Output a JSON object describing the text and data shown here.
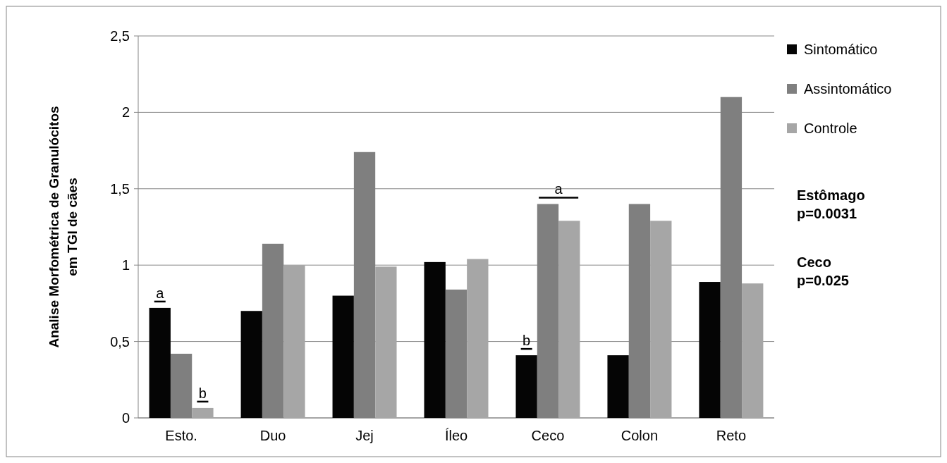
{
  "chart_data": {
    "type": "bar",
    "ylabel": "Analise Morfométrica de Granulócitos\nem TGI de cães",
    "categories": [
      "Esto.",
      "Duo",
      "Jej",
      "Íleo",
      "Ceco",
      "Colon",
      "Reto"
    ],
    "series": [
      {
        "name": "Sintomático",
        "color": "#050505",
        "values": [
          0.72,
          0.7,
          0.8,
          1.02,
          0.41,
          0.41,
          0.89
        ]
      },
      {
        "name": "Assintomático",
        "color": "#7f7f7f",
        "values": [
          0.42,
          1.14,
          1.74,
          0.84,
          1.4,
          1.4,
          2.1
        ]
      },
      {
        "name": "Controle",
        "color": "#a6a6a6",
        "values": [
          0.065,
          1.0,
          0.99,
          1.04,
          1.29,
          1.29,
          0.88
        ]
      }
    ],
    "ylim": [
      0,
      2.5
    ],
    "yticks": [
      0,
      {
        "value": 0.5,
        "label": "0,5"
      },
      1,
      {
        "value": 1.5,
        "label": "1,5"
      },
      2,
      {
        "value": 2.5,
        "label": "2,5"
      }
    ],
    "grid": "y",
    "legend": "top right",
    "annotations": [
      "a",
      "b",
      "b",
      "a",
      "Estômago\np=0.0031",
      "Ceco\np=0.025"
    ]
  }
}
